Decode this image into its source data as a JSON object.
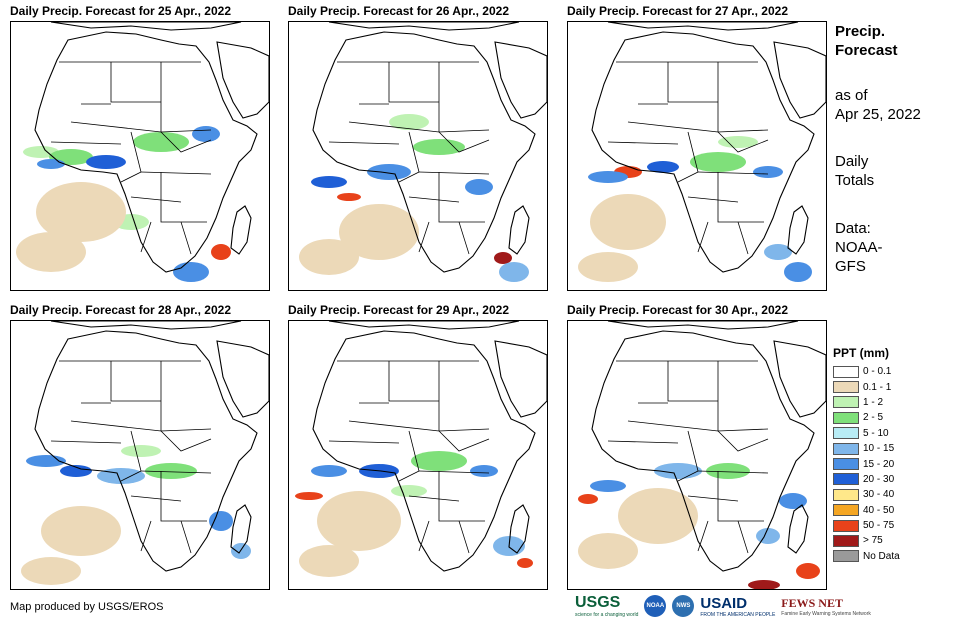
{
  "panels": [
    {
      "title": "Daily Precip. Forecast for 25 Apr., 2022"
    },
    {
      "title": "Daily Precip. Forecast for 26 Apr., 2022"
    },
    {
      "title": "Daily Precip. Forecast for 27 Apr., 2022"
    },
    {
      "title": "Daily Precip. Forecast for 28 Apr., 2022"
    },
    {
      "title": "Daily Precip. Forecast for 29 Apr., 2022"
    },
    {
      "title": "Daily Precip. Forecast for 30 Apr., 2022"
    }
  ],
  "sidebar": {
    "title_line1": "Precip.",
    "title_line2": "Forecast",
    "asof_line1": "as of",
    "asof_line2": "Apr 25, 2022",
    "daily_line1": "Daily",
    "daily_line2": "Totals",
    "data_line1": "Data:",
    "data_line2": "NOAA-",
    "data_line3": "GFS"
  },
  "legend": {
    "title": "PPT (mm)",
    "items": [
      {
        "label": "0 - 0.1",
        "color": "#ffffff"
      },
      {
        "label": "0.1 - 1",
        "color": "#ecd9b8"
      },
      {
        "label": "1 - 2",
        "color": "#bff2b3"
      },
      {
        "label": "2 - 5",
        "color": "#7fe07a"
      },
      {
        "label": "5 - 10",
        "color": "#b8ecf5"
      },
      {
        "label": "10 - 15",
        "color": "#7fb6ea"
      },
      {
        "label": "15 - 20",
        "color": "#4a8fe4"
      },
      {
        "label": "20 - 30",
        "color": "#1f5fd6"
      },
      {
        "label": "30 - 40",
        "color": "#ffe88a"
      },
      {
        "label": "40 - 50",
        "color": "#f5a623"
      },
      {
        "label": "50 - 75",
        "color": "#e8421a"
      },
      {
        "label": "> 75",
        "color": "#a01a1a"
      },
      {
        "label": "No Data",
        "color": "#9a9a9a"
      }
    ]
  },
  "footer": {
    "credit": "Map produced by USGS/EROS",
    "logo_usgs": "USGS",
    "logo_usgs_tag": "science for a changing world",
    "logo_noaa": "NOAA",
    "logo_nws": "NWS",
    "logo_usaid": "USAID",
    "logo_usaid_tag": "FROM THE AMERICAN PEOPLE",
    "logo_fews": "FEWS NET",
    "logo_fews_tag": "Famine Early Warning Systems Network"
  }
}
